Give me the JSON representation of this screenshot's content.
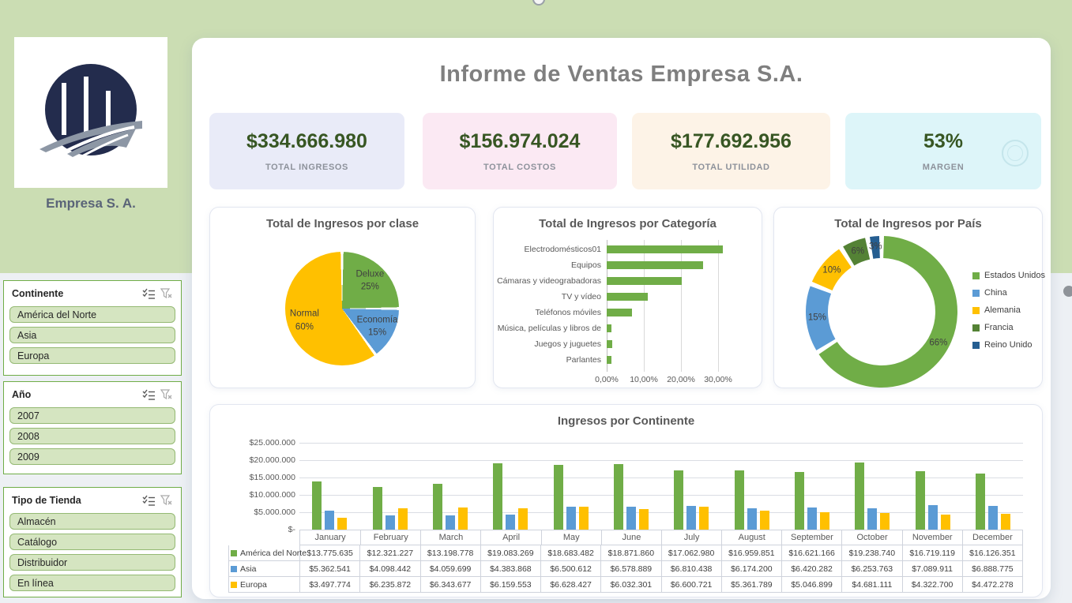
{
  "header": {
    "title": "Informe de Ventas Empresa S.A."
  },
  "branding": {
    "company_name": "Empresa S. A."
  },
  "kpis": [
    {
      "value": "$334.666.980",
      "label": "TOTAL INGRESOS",
      "bg": "#e9ebf8"
    },
    {
      "value": "$156.974.024",
      "label": "TOTAL COSTOS",
      "bg": "#fbe9f3"
    },
    {
      "value": "$177.692.956",
      "label": "TOTAL UTILIDAD",
      "bg": "#fdf3e7"
    },
    {
      "value": "53%",
      "label": "MARGEN",
      "bg": "#ddf5f9"
    }
  ],
  "sidebar": {
    "slicers": [
      {
        "title": "Continente",
        "items": [
          "América del Norte",
          "Asia",
          "Europa"
        ]
      },
      {
        "title": "Año",
        "items": [
          "2007",
          "2008",
          "2009"
        ]
      },
      {
        "title": "Tipo de Tienda",
        "items": [
          "Almacén",
          "Catálogo",
          "Distribuidor",
          "En línea"
        ]
      }
    ]
  },
  "chart_data": [
    {
      "type": "pie",
      "title": "Total de Ingresos por clase",
      "labels": [
        "Deluxe",
        "Economía",
        "Normal"
      ],
      "values": [
        25,
        15,
        60
      ],
      "colors": [
        "#70ad47",
        "#5b9bd5",
        "#ffc000"
      ],
      "data_labels": [
        "Deluxe 25%",
        "Economía 15%",
        "Normal 60%"
      ]
    },
    {
      "type": "bar",
      "orientation": "horizontal",
      "title": "Total de Ingresos por Categoría",
      "categories": [
        "Electrodomésticos01",
        "Equipos",
        "Cámaras y videograbadoras",
        "TV y vídeo",
        "Teléfonos móviles",
        "Música, películas y libros de",
        "Juegos y juguetes",
        "Parlantes"
      ],
      "values": [
        31.3,
        26.0,
        20.2,
        11.1,
        6.8,
        1.3,
        1.4,
        1.2
      ],
      "unit": "%",
      "color": "#70ad47",
      "x_ticks": [
        "0,00%",
        "10,00%",
        "20,00%",
        "30,00%"
      ],
      "x_tick_values": [
        0,
        10,
        20,
        30
      ],
      "xlim": [
        0,
        34.7
      ],
      "grid": true
    },
    {
      "type": "pie",
      "subtype": "donut",
      "title": "Total de Ingresos por País",
      "labels": [
        "Estados Unidos",
        "China",
        "Alemania",
        "Francia",
        "Reino Unido"
      ],
      "values": [
        66,
        15,
        10,
        6,
        3
      ],
      "colors": [
        "#70ad47",
        "#5b9bd5",
        "#ffc000",
        "#548235",
        "#255e91"
      ],
      "segment_labels": [
        "66%",
        "15%",
        "10%",
        "6%",
        "3%"
      ],
      "legend_position": "right"
    },
    {
      "type": "column",
      "title": "Ingresos por Continente",
      "categories": [
        "January",
        "February",
        "March",
        "April",
        "May",
        "June",
        "July",
        "August",
        "September",
        "October",
        "November",
        "December"
      ],
      "series": [
        {
          "name": "América del Norte",
          "color": "#70ad47",
          "values": [
            13775635,
            12321227,
            13198778,
            19083269,
            18683482,
            18871860,
            17062980,
            16959851,
            16621166,
            19238740,
            16719119,
            16126351
          ]
        },
        {
          "name": "Asia",
          "color": "#5b9bd5",
          "values": [
            5362541,
            4098442,
            4059699,
            4383868,
            6500612,
            6578889,
            6810438,
            6174200,
            6420282,
            6253763,
            7089911,
            6888775
          ]
        },
        {
          "name": "Europa",
          "color": "#ffc000",
          "values": [
            3497774,
            6235872,
            6343677,
            6159553,
            6628427,
            6032301,
            6600721,
            5361789,
            5046899,
            4681111,
            4322700,
            4472278
          ]
        }
      ],
      "y_ticks": [
        "$25.000.000",
        "$20.000.000",
        "$15.000.000",
        "$10.000.000",
        "$5.000.000",
        "$-"
      ],
      "ylim": [
        0,
        25000000
      ],
      "grid": true,
      "data_table": true
    }
  ]
}
